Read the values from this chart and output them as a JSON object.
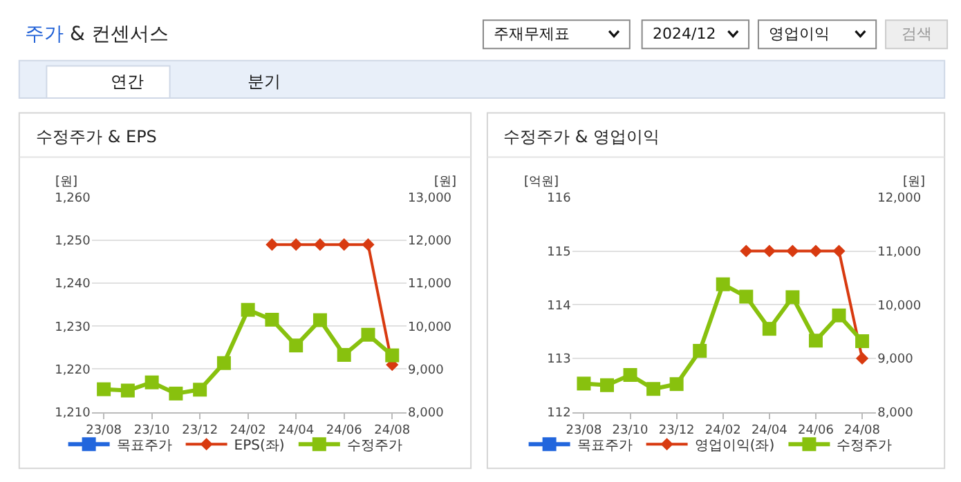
{
  "chart_data": [
    {
      "type": "other",
      "title": "주가 & 컨센서스",
      "annotations": [
        "주재무제표",
        "2024/12",
        "영업이익",
        "검색",
        "연간",
        "분기"
      ]
    },
    {
      "type": "line",
      "title": "수정주가 & EPS",
      "ylabel": "[원]",
      "y2label": "[원]",
      "categories": [
        "23/08",
        null,
        "23/10",
        null,
        "23/12",
        null,
        "24/02",
        null,
        "24/04",
        null,
        "24/06",
        null,
        "24/08"
      ],
      "ylim": [
        1210,
        1260
      ],
      "yticks": [
        {
          "value": 1210,
          "label": "1,210"
        },
        {
          "value": 1220,
          "label": "1,220"
        },
        {
          "value": 1230,
          "label": "1,230"
        },
        {
          "value": 1240,
          "label": "1,240"
        },
        {
          "value": 1250,
          "label": "1,250"
        },
        {
          "value": 1260,
          "label": "1,260"
        }
      ],
      "y2lim": [
        8000,
        13000
      ],
      "y2ticks": [
        {
          "value": 8000,
          "label": "8,000"
        },
        {
          "value": 9000,
          "label": "9,000"
        },
        {
          "value": 10000,
          "label": "10,000"
        },
        {
          "value": 11000,
          "label": "11,000"
        },
        {
          "value": 12000,
          "label": "12,000"
        },
        {
          "value": 13000,
          "label": "13,000"
        }
      ],
      "grid": "y",
      "legend": "bottom",
      "series": [
        {
          "name": "목표주가",
          "color": "#2266dd",
          "marker": "square",
          "values": [
            null,
            null,
            null,
            null,
            null,
            null,
            null,
            null,
            null,
            null,
            null,
            null,
            null
          ]
        },
        {
          "name": "EPS(좌)",
          "color": "#d83a10",
          "marker": "diamond",
          "values": [
            null,
            null,
            null,
            null,
            null,
            null,
            null,
            1249,
            1249,
            1249,
            1249,
            1249,
            1221
          ]
        },
        {
          "name": "수정주가",
          "color": "#88c10e",
          "marker": "square",
          "axis": "y2",
          "values": [
            8530,
            8500,
            8690,
            8430,
            8520,
            9140,
            10380,
            10150,
            9550,
            10140,
            9330,
            9800,
            9320
          ]
        }
      ]
    },
    {
      "type": "line",
      "title": "수정주가 & 영업이익",
      "ylabel": "[억원]",
      "y2label": "[원]",
      "categories": [
        "23/08",
        null,
        "23/10",
        null,
        "23/12",
        null,
        "24/02",
        null,
        "24/04",
        null,
        "24/06",
        null,
        "24/08"
      ],
      "ylim": [
        112,
        116
      ],
      "yticks": [
        112,
        113,
        114,
        115,
        116
      ],
      "y2lim": [
        8000,
        12000
      ],
      "y2ticks": [
        {
          "value": 8000,
          "label": "8,000"
        },
        {
          "value": 9000,
          "label": "9,000"
        },
        {
          "value": 10000,
          "label": "10,000"
        },
        {
          "value": 11000,
          "label": "11,000"
        },
        {
          "value": 12000,
          "label": "12,000"
        }
      ],
      "grid": "y",
      "legend": "bottom",
      "series": [
        {
          "name": "목표주가",
          "color": "#2266dd",
          "marker": "square",
          "values": [
            null,
            null,
            null,
            null,
            null,
            null,
            null,
            null,
            null,
            null,
            null,
            null,
            null
          ]
        },
        {
          "name": "영업이익(좌)",
          "color": "#d83a10",
          "marker": "diamond",
          "values": [
            null,
            null,
            null,
            null,
            null,
            null,
            null,
            115,
            115,
            115,
            115,
            115,
            113
          ]
        },
        {
          "name": "수정주가",
          "color": "#88c10e",
          "marker": "square",
          "axis": "y2",
          "values": [
            8530,
            8500,
            8690,
            8430,
            8520,
            9140,
            10380,
            10150,
            9550,
            10140,
            9330,
            9800,
            9320
          ]
        }
      ]
    }
  ]
}
